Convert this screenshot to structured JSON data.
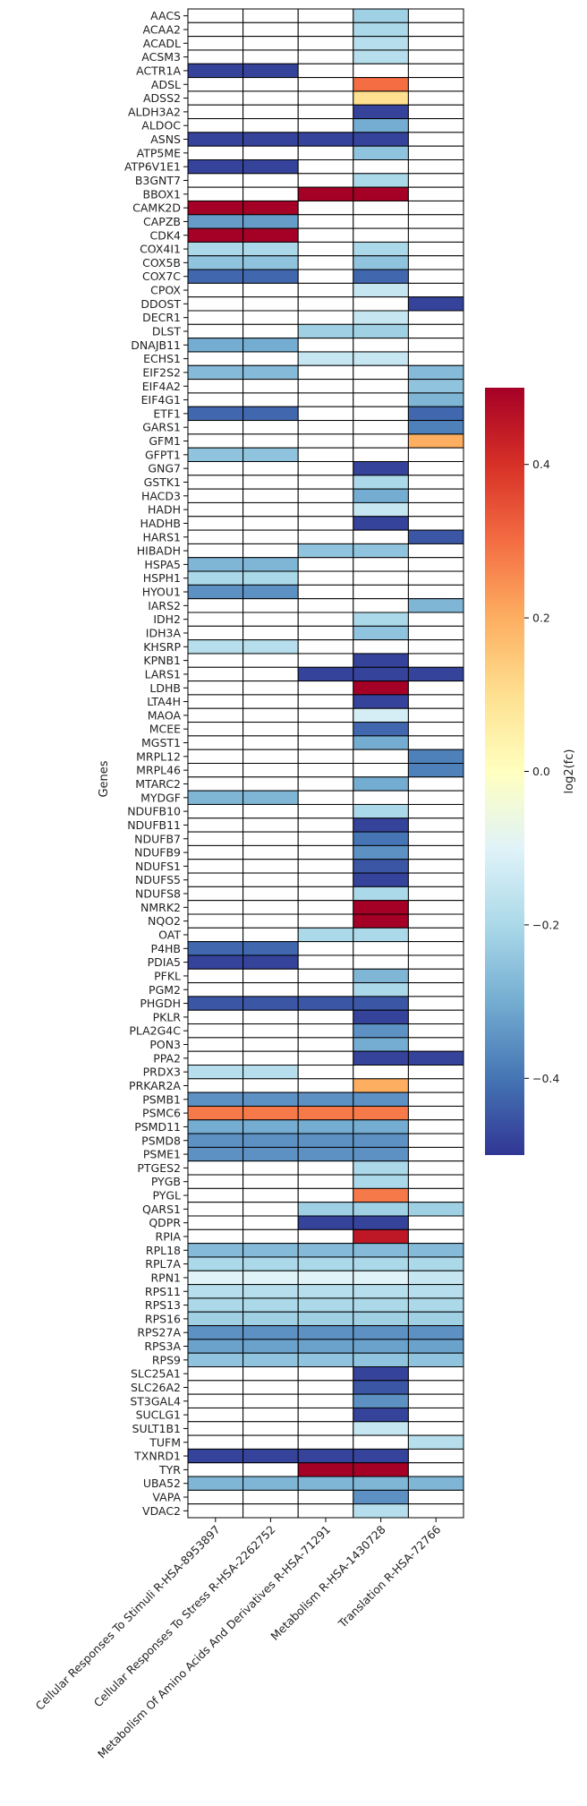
{
  "chart_data": {
    "type": "heatmap",
    "ylabel": "Genes",
    "xlabel": "",
    "colorbar_label": "log2(fc)",
    "colormap": "RdYlBu_r",
    "vmin": -0.5,
    "vmax": 0.5,
    "colorbar_ticks": [
      "0.4",
      "0.2",
      "0.0",
      "−0.2",
      "−0.4"
    ],
    "colorbar_tick_values": [
      0.4,
      0.2,
      0.0,
      -0.2,
      -0.4
    ],
    "columns": [
      "Cellular Responses To Stimuli R-HSA-8953897",
      "Cellular Responses To Stress R-HSA-2262752",
      "Metabolism Of Amino Acids And Derivatives R-HSA-71291",
      "Metabolism R-HSA-1430728",
      "Translation R-HSA-72766"
    ],
    "rows": [
      {
        "gene": "AACS",
        "values": [
          null,
          null,
          null,
          -0.22,
          null
        ]
      },
      {
        "gene": "ACAA2",
        "values": [
          null,
          null,
          null,
          -0.2,
          null
        ]
      },
      {
        "gene": "ACADL",
        "values": [
          null,
          null,
          null,
          -0.18,
          null
        ]
      },
      {
        "gene": "ACSM3",
        "values": [
          null,
          null,
          null,
          -0.18,
          null
        ]
      },
      {
        "gene": "ACTR1A",
        "values": [
          -0.48,
          -0.48,
          null,
          null,
          null
        ]
      },
      {
        "gene": "ADSL",
        "values": [
          null,
          null,
          null,
          0.3,
          null
        ]
      },
      {
        "gene": "ADSS2",
        "values": [
          null,
          null,
          null,
          0.1,
          null
        ]
      },
      {
        "gene": "ALDH3A2",
        "values": [
          null,
          null,
          null,
          -0.48,
          null
        ]
      },
      {
        "gene": "ALDOC",
        "values": [
          null,
          null,
          null,
          -0.3,
          null
        ]
      },
      {
        "gene": "ASNS",
        "values": [
          -0.48,
          -0.48,
          -0.48,
          -0.48,
          null
        ]
      },
      {
        "gene": "ATP5ME",
        "values": [
          null,
          null,
          null,
          -0.25,
          null
        ]
      },
      {
        "gene": "ATP6V1E1",
        "values": [
          -0.48,
          -0.48,
          null,
          null,
          null
        ]
      },
      {
        "gene": "B3GNT7",
        "values": [
          null,
          null,
          null,
          -0.2,
          null
        ]
      },
      {
        "gene": "BBOX1",
        "values": [
          null,
          null,
          0.5,
          0.5,
          null
        ]
      },
      {
        "gene": "CAMK2D",
        "values": [
          0.5,
          0.5,
          null,
          null,
          null
        ]
      },
      {
        "gene": "CAPZB",
        "values": [
          -0.33,
          -0.33,
          null,
          null,
          null
        ]
      },
      {
        "gene": "CDK4",
        "values": [
          0.5,
          0.5,
          null,
          null,
          null
        ]
      },
      {
        "gene": "COX4I1",
        "values": [
          -0.2,
          -0.2,
          null,
          -0.2,
          null
        ]
      },
      {
        "gene": "COX5B",
        "values": [
          -0.25,
          -0.25,
          null,
          -0.25,
          null
        ]
      },
      {
        "gene": "COX7C",
        "values": [
          -0.42,
          -0.42,
          null,
          -0.42,
          null
        ]
      },
      {
        "gene": "CPOX",
        "values": [
          null,
          null,
          null,
          -0.15,
          null
        ]
      },
      {
        "gene": "DDOST",
        "values": [
          null,
          null,
          null,
          null,
          -0.48
        ]
      },
      {
        "gene": "DECR1",
        "values": [
          null,
          null,
          null,
          -0.15,
          null
        ]
      },
      {
        "gene": "DLST",
        "values": [
          null,
          null,
          -0.22,
          -0.22,
          null
        ]
      },
      {
        "gene": "DNAJB11",
        "values": [
          -0.3,
          -0.3,
          null,
          null,
          null
        ]
      },
      {
        "gene": "ECHS1",
        "values": [
          null,
          null,
          -0.15,
          -0.15,
          null
        ]
      },
      {
        "gene": "EIF2S2",
        "values": [
          -0.27,
          -0.27,
          null,
          null,
          -0.27
        ]
      },
      {
        "gene": "EIF4A2",
        "values": [
          null,
          null,
          null,
          null,
          -0.25
        ]
      },
      {
        "gene": "EIF4G1",
        "values": [
          null,
          null,
          null,
          null,
          -0.28
        ]
      },
      {
        "gene": "ETF1",
        "values": [
          -0.42,
          -0.42,
          null,
          null,
          -0.42
        ]
      },
      {
        "gene": "GARS1",
        "values": [
          null,
          null,
          null,
          null,
          -0.38
        ]
      },
      {
        "gene": "GFM1",
        "values": [
          null,
          null,
          null,
          null,
          0.2
        ]
      },
      {
        "gene": "GFPT1",
        "values": [
          -0.25,
          -0.25,
          null,
          null,
          null
        ]
      },
      {
        "gene": "GNG7",
        "values": [
          null,
          null,
          null,
          -0.48,
          null
        ]
      },
      {
        "gene": "GSTK1",
        "values": [
          null,
          null,
          null,
          -0.2,
          null
        ]
      },
      {
        "gene": "HACD3",
        "values": [
          null,
          null,
          null,
          -0.3,
          null
        ]
      },
      {
        "gene": "HADH",
        "values": [
          null,
          null,
          null,
          -0.15,
          null
        ]
      },
      {
        "gene": "HADHB",
        "values": [
          null,
          null,
          null,
          -0.48,
          null
        ]
      },
      {
        "gene": "HARS1",
        "values": [
          null,
          null,
          null,
          null,
          -0.45
        ]
      },
      {
        "gene": "HIBADH",
        "values": [
          null,
          null,
          -0.25,
          -0.25,
          null
        ]
      },
      {
        "gene": "HSPA5",
        "values": [
          -0.28,
          -0.28,
          null,
          null,
          null
        ]
      },
      {
        "gene": "HSPH1",
        "values": [
          -0.2,
          -0.2,
          null,
          null,
          null
        ]
      },
      {
        "gene": "HYOU1",
        "values": [
          -0.35,
          -0.35,
          null,
          null,
          null
        ]
      },
      {
        "gene": "IARS2",
        "values": [
          null,
          null,
          null,
          null,
          -0.28
        ]
      },
      {
        "gene": "IDH2",
        "values": [
          null,
          null,
          null,
          -0.2,
          null
        ]
      },
      {
        "gene": "IDH3A",
        "values": [
          null,
          null,
          null,
          -0.25,
          null
        ]
      },
      {
        "gene": "KHSRP",
        "values": [
          -0.18,
          -0.18,
          null,
          null,
          null
        ]
      },
      {
        "gene": "KPNB1",
        "values": [
          null,
          null,
          null,
          -0.48,
          null
        ]
      },
      {
        "gene": "LARS1",
        "values": [
          null,
          null,
          -0.48,
          -0.48,
          -0.48
        ]
      },
      {
        "gene": "LDHB",
        "values": [
          null,
          null,
          null,
          0.5,
          null
        ]
      },
      {
        "gene": "LTA4H",
        "values": [
          null,
          null,
          null,
          -0.48,
          null
        ]
      },
      {
        "gene": "MAOA",
        "values": [
          null,
          null,
          null,
          -0.12,
          null
        ]
      },
      {
        "gene": "MCEE",
        "values": [
          null,
          null,
          null,
          -0.42,
          null
        ]
      },
      {
        "gene": "MGST1",
        "values": [
          null,
          null,
          null,
          -0.3,
          null
        ]
      },
      {
        "gene": "MRPL12",
        "values": [
          null,
          null,
          null,
          null,
          -0.38
        ]
      },
      {
        "gene": "MRPL46",
        "values": [
          null,
          null,
          null,
          null,
          -0.38
        ]
      },
      {
        "gene": "MTARC2",
        "values": [
          null,
          null,
          null,
          -0.3,
          null
        ]
      },
      {
        "gene": "MYDGF",
        "values": [
          -0.28,
          -0.28,
          null,
          null,
          null
        ]
      },
      {
        "gene": "NDUFB10",
        "values": [
          null,
          null,
          null,
          -0.2,
          null
        ]
      },
      {
        "gene": "NDUFB11",
        "values": [
          null,
          null,
          null,
          -0.48,
          null
        ]
      },
      {
        "gene": "NDUFB7",
        "values": [
          null,
          null,
          null,
          -0.4,
          null
        ]
      },
      {
        "gene": "NDUFB9",
        "values": [
          null,
          null,
          null,
          -0.35,
          null
        ]
      },
      {
        "gene": "NDUFS1",
        "values": [
          null,
          null,
          null,
          -0.45,
          null
        ]
      },
      {
        "gene": "NDUFS5",
        "values": [
          null,
          null,
          null,
          -0.48,
          null
        ]
      },
      {
        "gene": "NDUFS8",
        "values": [
          null,
          null,
          null,
          -0.2,
          null
        ]
      },
      {
        "gene": "NMRK2",
        "values": [
          null,
          null,
          null,
          0.5,
          null
        ]
      },
      {
        "gene": "NQO2",
        "values": [
          null,
          null,
          null,
          0.5,
          null
        ]
      },
      {
        "gene": "OAT",
        "values": [
          null,
          null,
          -0.2,
          -0.2,
          null
        ]
      },
      {
        "gene": "P4HB",
        "values": [
          -0.42,
          -0.42,
          null,
          null,
          null
        ]
      },
      {
        "gene": "PDIA5",
        "values": [
          -0.48,
          -0.48,
          null,
          null,
          null
        ]
      },
      {
        "gene": "PFKL",
        "values": [
          null,
          null,
          null,
          -0.28,
          null
        ]
      },
      {
        "gene": "PGM2",
        "values": [
          null,
          null,
          null,
          -0.2,
          null
        ]
      },
      {
        "gene": "PHGDH",
        "values": [
          -0.45,
          -0.45,
          -0.45,
          -0.45,
          null
        ]
      },
      {
        "gene": "PKLR",
        "values": [
          null,
          null,
          null,
          -0.48,
          null
        ]
      },
      {
        "gene": "PLA2G4C",
        "values": [
          null,
          null,
          null,
          -0.35,
          null
        ]
      },
      {
        "gene": "PON3",
        "values": [
          null,
          null,
          null,
          -0.3,
          null
        ]
      },
      {
        "gene": "PPA2",
        "values": [
          null,
          null,
          null,
          -0.48,
          -0.48
        ]
      },
      {
        "gene": "PRDX3",
        "values": [
          -0.18,
          -0.18,
          null,
          null,
          null
        ]
      },
      {
        "gene": "PRKAR2A",
        "values": [
          null,
          null,
          null,
          0.2,
          null
        ]
      },
      {
        "gene": "PSMB1",
        "values": [
          -0.35,
          -0.35,
          -0.35,
          -0.35,
          null
        ]
      },
      {
        "gene": "PSMC6",
        "values": [
          0.28,
          0.28,
          0.28,
          0.28,
          null
        ]
      },
      {
        "gene": "PSMD11",
        "values": [
          -0.3,
          -0.3,
          -0.3,
          -0.3,
          null
        ]
      },
      {
        "gene": "PSMD8",
        "values": [
          -0.35,
          -0.35,
          -0.35,
          -0.35,
          null
        ]
      },
      {
        "gene": "PSME1",
        "values": [
          -0.35,
          -0.35,
          -0.35,
          -0.35,
          null
        ]
      },
      {
        "gene": "PTGES2",
        "values": [
          null,
          null,
          null,
          -0.2,
          null
        ]
      },
      {
        "gene": "PYGB",
        "values": [
          null,
          null,
          null,
          -0.2,
          null
        ]
      },
      {
        "gene": "PYGL",
        "values": [
          null,
          null,
          null,
          0.28,
          null
        ]
      },
      {
        "gene": "QARS1",
        "values": [
          null,
          null,
          -0.22,
          -0.22,
          -0.22
        ]
      },
      {
        "gene": "QDPR",
        "values": [
          null,
          null,
          -0.48,
          -0.48,
          null
        ]
      },
      {
        "gene": "RPIA",
        "values": [
          null,
          null,
          null,
          0.45,
          null
        ]
      },
      {
        "gene": "RPL18",
        "values": [
          -0.27,
          -0.27,
          -0.27,
          -0.27,
          -0.27
        ]
      },
      {
        "gene": "RPL7A",
        "values": [
          -0.2,
          -0.2,
          -0.2,
          -0.2,
          -0.2
        ]
      },
      {
        "gene": "RPN1",
        "values": [
          -0.1,
          -0.1,
          -0.1,
          -0.1,
          -0.15
        ]
      },
      {
        "gene": "RPS11",
        "values": [
          -0.18,
          -0.18,
          -0.18,
          -0.18,
          -0.18
        ]
      },
      {
        "gene": "RPS13",
        "values": [
          -0.2,
          -0.2,
          -0.2,
          -0.2,
          -0.2
        ]
      },
      {
        "gene": "RPS16",
        "values": [
          -0.22,
          -0.22,
          -0.22,
          -0.22,
          -0.22
        ]
      },
      {
        "gene": "RPS27A",
        "values": [
          -0.35,
          -0.35,
          -0.35,
          -0.35,
          -0.35
        ]
      },
      {
        "gene": "RPS3A",
        "values": [
          -0.32,
          -0.32,
          -0.32,
          -0.32,
          -0.32
        ]
      },
      {
        "gene": "RPS9",
        "values": [
          -0.25,
          -0.25,
          -0.25,
          -0.25,
          -0.25
        ]
      },
      {
        "gene": "SLC25A1",
        "values": [
          null,
          null,
          null,
          -0.48,
          null
        ]
      },
      {
        "gene": "SLC26A2",
        "values": [
          null,
          null,
          null,
          -0.45,
          null
        ]
      },
      {
        "gene": "ST3GAL4",
        "values": [
          null,
          null,
          null,
          -0.35,
          null
        ]
      },
      {
        "gene": "SUCLG1",
        "values": [
          null,
          null,
          null,
          -0.48,
          null
        ]
      },
      {
        "gene": "SULT1B1",
        "values": [
          null,
          null,
          null,
          -0.15,
          null
        ]
      },
      {
        "gene": "TUFM",
        "values": [
          null,
          null,
          null,
          null,
          -0.18
        ]
      },
      {
        "gene": "TXNRD1",
        "values": [
          -0.48,
          -0.48,
          -0.48,
          -0.48,
          null
        ]
      },
      {
        "gene": "TYR",
        "values": [
          null,
          null,
          0.5,
          0.5,
          null
        ]
      },
      {
        "gene": "UBA52",
        "values": [
          -0.28,
          -0.28,
          -0.28,
          -0.28,
          -0.28
        ]
      },
      {
        "gene": "VAPA",
        "values": [
          null,
          null,
          null,
          -0.35,
          null
        ]
      },
      {
        "gene": "VDAC2",
        "values": [
          null,
          null,
          null,
          -0.18,
          null
        ]
      }
    ]
  }
}
